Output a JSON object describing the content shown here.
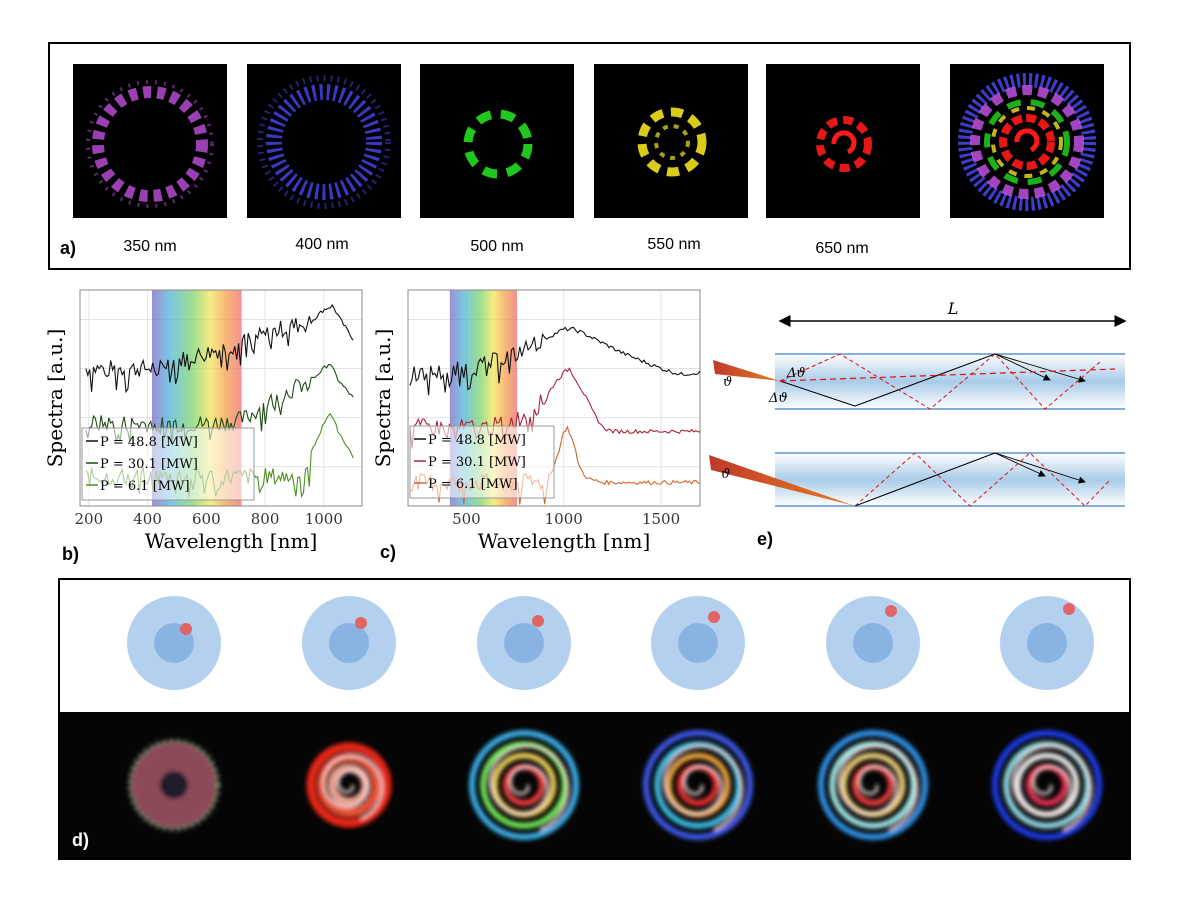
{
  "panel_a": {
    "label": "a)",
    "tiles": [
      {
        "caption": "350 nm",
        "color": "#c050e0"
      },
      {
        "caption": "400 nm",
        "color": "#4b4cff"
      },
      {
        "caption": "500 nm",
        "color": "#22dd22"
      },
      {
        "caption": "550 nm",
        "color": "#f2e21e"
      },
      {
        "caption": "650 nm",
        "color": "#ff1a1a"
      },
      {
        "caption": "",
        "color": "#ffffff"
      }
    ]
  },
  "panel_b": {
    "label": "b)"
  },
  "panel_c": {
    "label": "c)"
  },
  "panel_d": {
    "label": "d)"
  },
  "panel_e": {
    "label": "e)",
    "length_label": "L",
    "angle_label": "ϑ",
    "delta_angle_label": "Δϑ"
  },
  "chart_data": [
    {
      "type": "line",
      "id": "b",
      "xlabel": "Wavelength [nm]",
      "ylabel": "Spectra [a.u.]",
      "xlim": [
        170,
        1130
      ],
      "xticks": [
        200,
        400,
        600,
        800,
        1000
      ],
      "grid": true,
      "legend_position": "bottom-left",
      "visible_band_nm": [
        415,
        720
      ],
      "series": [
        {
          "name": "P = 48.8 [MW]",
          "color": "#111111",
          "x": [
            190,
            300,
            400,
            500,
            600,
            650,
            700,
            750,
            800,
            850,
            900,
            950,
            1000,
            1030,
            1060,
            1100
          ],
          "y": [
            0.8,
            0.8,
            0.8,
            0.84,
            0.88,
            0.9,
            0.92,
            0.95,
            0.97,
            1.0,
            1.02,
            1.03,
            1.1,
            1.12,
            1.04,
            0.95
          ]
        },
        {
          "name": "P = 30.1 [MW]",
          "color": "#1f4a14",
          "x": [
            190,
            300,
            400,
            500,
            600,
            700,
            750,
            800,
            850,
            900,
            950,
            1000,
            1020,
            1050,
            1100
          ],
          "y": [
            0.52,
            0.52,
            0.52,
            0.52,
            0.52,
            0.53,
            0.56,
            0.62,
            0.66,
            0.7,
            0.73,
            0.8,
            0.83,
            0.74,
            0.65
          ]
        },
        {
          "name": "P = 6.1 [MW]",
          "color": "#4e8f22",
          "x": [
            190,
            400,
            600,
            700,
            800,
            900,
            940,
            960,
            980,
            1000,
            1020,
            1050,
            1100
          ],
          "y": [
            0.25,
            0.25,
            0.25,
            0.25,
            0.25,
            0.25,
            0.25,
            0.38,
            0.45,
            0.52,
            0.58,
            0.48,
            0.35
          ]
        }
      ]
    },
    {
      "type": "line",
      "id": "c",
      "xlabel": "Wavelength [nm]",
      "ylabel": "Spectra [a.u.]",
      "xlim": [
        200,
        1700
      ],
      "xticks": [
        500,
        1000,
        1500
      ],
      "grid": true,
      "legend_position": "bottom-left",
      "visible_band_nm": [
        415,
        760
      ],
      "series": [
        {
          "name": "P = 48.8 [MW]",
          "color": "#111111",
          "x": [
            210,
            300,
            400,
            500,
            600,
            700,
            800,
            900,
            1000,
            1050,
            1100,
            1200,
            1300,
            1400,
            1500,
            1600,
            1700
          ],
          "y": [
            0.78,
            0.78,
            0.78,
            0.8,
            0.82,
            0.86,
            0.9,
            0.95,
            1.0,
            1.0,
            0.98,
            0.93,
            0.88,
            0.84,
            0.8,
            0.77,
            0.78
          ]
        },
        {
          "name": "P = 30.1 [MW]",
          "color": "#a8243a",
          "x": [
            210,
            400,
            600,
            700,
            800,
            900,
            950,
            1000,
            1030,
            1100,
            1150,
            1200,
            1250,
            1700
          ],
          "y": [
            0.5,
            0.5,
            0.5,
            0.52,
            0.56,
            0.64,
            0.72,
            0.78,
            0.8,
            0.68,
            0.58,
            0.5,
            0.48,
            0.48
          ]
        },
        {
          "name": "P = 6.1 [MW]",
          "color": "#d4662a",
          "x": [
            210,
            850,
            900,
            950,
            980,
            1000,
            1020,
            1050,
            1080,
            1120,
            1200,
            1700
          ],
          "y": [
            0.22,
            0.22,
            0.22,
            0.3,
            0.4,
            0.48,
            0.5,
            0.42,
            0.3,
            0.24,
            0.22,
            0.22
          ]
        }
      ]
    }
  ]
}
